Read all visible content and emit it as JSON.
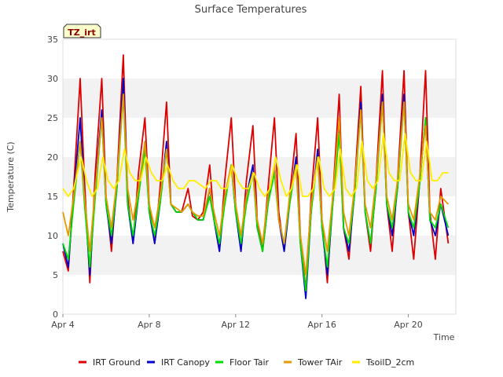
{
  "chart_data": {
    "type": "line",
    "title": "Surface Temperatures",
    "xlabel": "Time",
    "ylabel": "Temperature (C)",
    "badge": "TZ_irt",
    "xlim": [
      0,
      18.2
    ],
    "ylim": [
      0,
      35
    ],
    "yticks": [
      0,
      5,
      10,
      15,
      20,
      25,
      30,
      35
    ],
    "xticks": [
      {
        "label": "Apr 4",
        "day": 0
      },
      {
        "label": "Apr 8",
        "day": 4
      },
      {
        "label": "Apr 12",
        "day": 8
      },
      {
        "label": "Apr 16",
        "day": 12
      },
      {
        "label": "Apr 20",
        "day": 16
      }
    ],
    "grid": "horizontal bands",
    "legend_position": "bottom",
    "series": [
      {
        "name": "IRT Ground",
        "color": "#dd0000",
        "x": [
          0.0,
          0.25,
          0.5,
          0.8,
          1.0,
          1.25,
          1.5,
          1.8,
          2.0,
          2.25,
          2.5,
          2.8,
          3.0,
          3.25,
          3.5,
          3.8,
          4.0,
          4.25,
          4.5,
          4.8,
          5.0,
          5.25,
          5.5,
          5.8,
          6.0,
          6.25,
          6.5,
          6.8,
          7.0,
          7.25,
          7.5,
          7.8,
          8.0,
          8.25,
          8.5,
          8.8,
          9.0,
          9.25,
          9.5,
          9.8,
          10.0,
          10.25,
          10.5,
          10.8,
          11.0,
          11.25,
          11.5,
          11.8,
          12.0,
          12.25,
          12.5,
          12.8,
          13.0,
          13.25,
          13.5,
          13.8,
          14.0,
          14.25,
          14.5,
          14.8,
          15.0,
          15.25,
          15.5,
          15.8,
          16.0,
          16.25,
          16.5,
          16.8,
          17.0,
          17.25,
          17.5,
          17.85
        ],
        "values": [
          8,
          5.5,
          16,
          30,
          17,
          4,
          18,
          30,
          15,
          8,
          17,
          33,
          15,
          9,
          18,
          25,
          14,
          9,
          16,
          27,
          14,
          13,
          13,
          16,
          12.5,
          12,
          13,
          19,
          12,
          8,
          17,
          25,
          14,
          8,
          17,
          24,
          12,
          8,
          16,
          25,
          13,
          8,
          15,
          23,
          10,
          3,
          15,
          25,
          12,
          4,
          15,
          28,
          11,
          7,
          16,
          29,
          13,
          8,
          17,
          31,
          14,
          8,
          17,
          31,
          13,
          7,
          16,
          31,
          13,
          7,
          16,
          9
        ]
      },
      {
        "name": "IRT Canopy",
        "color": "#0000cc",
        "x": [
          0.0,
          0.25,
          0.5,
          0.8,
          1.0,
          1.25,
          1.5,
          1.8,
          2.0,
          2.25,
          2.5,
          2.8,
          3.0,
          3.25,
          3.5,
          3.8,
          4.0,
          4.25,
          4.5,
          4.8,
          5.0,
          5.25,
          5.5,
          5.8,
          6.0,
          6.25,
          6.5,
          6.8,
          7.0,
          7.25,
          7.5,
          7.8,
          8.0,
          8.25,
          8.5,
          8.8,
          9.0,
          9.25,
          9.5,
          9.8,
          10.0,
          10.25,
          10.5,
          10.8,
          11.0,
          11.25,
          11.5,
          11.8,
          12.0,
          12.25,
          12.5,
          12.8,
          13.0,
          13.25,
          13.5,
          13.8,
          14.0,
          14.25,
          14.5,
          14.8,
          15.0,
          15.25,
          15.5,
          15.8,
          16.0,
          16.25,
          16.5,
          16.8,
          17.0,
          17.25,
          17.5,
          17.85
        ],
        "values": [
          9,
          6,
          15,
          25,
          15,
          5,
          16,
          26,
          14,
          9,
          16,
          30,
          14,
          9,
          15,
          22,
          13,
          9,
          14,
          22,
          14,
          13,
          13,
          14,
          13,
          12,
          12,
          16,
          12,
          8,
          15,
          19,
          13,
          8,
          15,
          19,
          11,
          8,
          14,
          19,
          12,
          8,
          14,
          20,
          9,
          2,
          13,
          21,
          11,
          5,
          14,
          24,
          11,
          8,
          15,
          27,
          13,
          9,
          16,
          28,
          14,
          10,
          16,
          28,
          13,
          10,
          16,
          25,
          12,
          10,
          14,
          10
        ]
      },
      {
        "name": "Floor Tair",
        "color": "#00dd00",
        "x": [
          0.0,
          0.25,
          0.5,
          0.8,
          1.0,
          1.25,
          1.5,
          1.8,
          2.0,
          2.25,
          2.5,
          2.8,
          3.0,
          3.25,
          3.5,
          3.8,
          4.0,
          4.25,
          4.5,
          4.8,
          5.0,
          5.25,
          5.5,
          5.8,
          6.0,
          6.25,
          6.5,
          6.8,
          7.0,
          7.25,
          7.5,
          7.8,
          8.0,
          8.25,
          8.5,
          8.8,
          9.0,
          9.25,
          9.5,
          9.8,
          10.0,
          10.25,
          10.5,
          10.8,
          11.0,
          11.25,
          11.5,
          11.8,
          12.0,
          12.25,
          12.5,
          12.8,
          13.0,
          13.25,
          13.5,
          13.8,
          14.0,
          14.25,
          14.5,
          14.8,
          15.0,
          15.25,
          15.5,
          15.8,
          16.0,
          16.25,
          16.5,
          16.8,
          17.0,
          17.25,
          17.5,
          17.85
        ],
        "values": [
          9,
          7,
          14,
          22,
          14,
          6,
          15,
          25,
          14,
          10,
          16,
          28,
          14,
          10,
          15,
          21,
          13,
          10,
          14,
          21,
          14,
          13,
          13,
          14,
          13,
          12,
          12,
          15,
          12,
          9,
          14,
          19,
          13,
          9,
          14,
          18,
          11,
          8,
          14,
          18,
          12,
          9,
          14,
          19,
          9,
          3,
          13,
          20,
          11,
          6,
          14,
          23,
          11,
          9,
          15,
          26,
          13,
          9,
          16,
          27,
          14,
          11,
          16,
          27,
          13,
          11,
          16,
          25,
          12,
          11,
          14,
          11
        ]
      },
      {
        "name": "Tower TAir",
        "color": "#e69a00",
        "x": [
          0.0,
          0.25,
          0.5,
          0.8,
          1.0,
          1.25,
          1.5,
          1.8,
          2.0,
          2.25,
          2.5,
          2.8,
          3.0,
          3.25,
          3.5,
          3.8,
          4.0,
          4.25,
          4.5,
          4.8,
          5.0,
          5.25,
          5.5,
          5.8,
          6.0,
          6.25,
          6.5,
          6.8,
          7.0,
          7.25,
          7.5,
          7.8,
          8.0,
          8.25,
          8.5,
          8.8,
          9.0,
          9.25,
          9.5,
          9.8,
          10.0,
          10.25,
          10.5,
          10.8,
          11.0,
          11.25,
          11.5,
          11.8,
          12.0,
          12.25,
          12.5,
          12.8,
          13.0,
          13.25,
          13.5,
          13.8,
          14.0,
          14.25,
          14.5,
          14.8,
          15.0,
          15.25,
          15.5,
          15.8,
          16.0,
          16.25,
          16.5,
          16.8,
          17.0,
          17.25,
          17.5,
          17.85
        ],
        "values": [
          13,
          10,
          15,
          22,
          15,
          8,
          16,
          25,
          15,
          11,
          17,
          28,
          16,
          12,
          16,
          22,
          14,
          11,
          15,
          21,
          14,
          13.5,
          13,
          14,
          13,
          12.5,
          12.5,
          16,
          13,
          10,
          15,
          19,
          14,
          10,
          15,
          18,
          12,
          9,
          15,
          19,
          12,
          9,
          15,
          19,
          10,
          5,
          14,
          20,
          12,
          8,
          15,
          25,
          13,
          10,
          16,
          26,
          14,
          11,
          17,
          27,
          15,
          12,
          17,
          27,
          14,
          12,
          17,
          24,
          13,
          12,
          15,
          14
        ]
      },
      {
        "name": "TsoilD_2cm",
        "color": "#ffee00",
        "x": [
          0.0,
          0.25,
          0.5,
          0.85,
          1.1,
          1.35,
          1.6,
          1.85,
          2.1,
          2.35,
          2.6,
          2.85,
          3.1,
          3.35,
          3.6,
          3.85,
          4.1,
          4.35,
          4.6,
          4.85,
          5.1,
          5.35,
          5.6,
          5.85,
          6.1,
          6.35,
          6.6,
          6.85,
          7.1,
          7.35,
          7.6,
          7.85,
          8.1,
          8.35,
          8.6,
          8.85,
          9.1,
          9.35,
          9.6,
          9.85,
          10.1,
          10.35,
          10.6,
          10.85,
          11.1,
          11.35,
          11.6,
          11.85,
          12.1,
          12.35,
          12.6,
          12.85,
          13.1,
          13.35,
          13.6,
          13.85,
          14.1,
          14.35,
          14.6,
          14.85,
          15.1,
          15.35,
          15.6,
          15.85,
          16.1,
          16.35,
          16.6,
          16.85,
          17.1,
          17.35,
          17.6,
          17.85
        ],
        "values": [
          16,
          15,
          16,
          20,
          17,
          15,
          16,
          20,
          17,
          16,
          17,
          21,
          18,
          17,
          17,
          20,
          18,
          17,
          17,
          19,
          17,
          16,
          16,
          17,
          17,
          16.5,
          16,
          17,
          17,
          16,
          16,
          19,
          17,
          16,
          16,
          18,
          16,
          15,
          16,
          20,
          17,
          15,
          16,
          19,
          15,
          15,
          16,
          20,
          16,
          15,
          16,
          21,
          16,
          15,
          16,
          22,
          17,
          16,
          17,
          23,
          18,
          17,
          17,
          23,
          18,
          17,
          17,
          22,
          17,
          17,
          18,
          18
        ]
      }
    ]
  }
}
